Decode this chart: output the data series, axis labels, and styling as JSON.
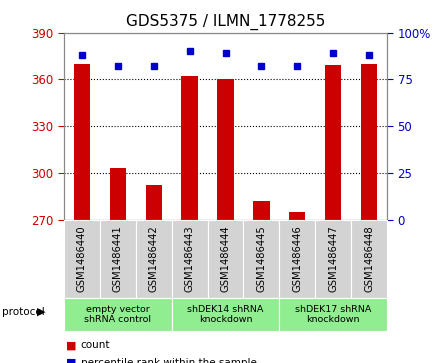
{
  "title": "GDS5375 / ILMN_1778255",
  "samples": [
    "GSM1486440",
    "GSM1486441",
    "GSM1486442",
    "GSM1486443",
    "GSM1486444",
    "GSM1486445",
    "GSM1486446",
    "GSM1486447",
    "GSM1486448"
  ],
  "counts": [
    370,
    303,
    292,
    362,
    360,
    282,
    275,
    369,
    370
  ],
  "percentiles": [
    88,
    82,
    82,
    90,
    89,
    82,
    82,
    89,
    88
  ],
  "ylim_left": [
    270,
    390
  ],
  "yticks_left": [
    270,
    300,
    330,
    360,
    390
  ],
  "ylim_right": [
    0,
    100
  ],
  "yticks_right": [
    0,
    25,
    50,
    75,
    100
  ],
  "yticklabels_right": [
    "0",
    "25",
    "50",
    "75",
    "100%"
  ],
  "bar_color": "#cc0000",
  "dot_color": "#0000cc",
  "bar_width": 0.45,
  "grid_linestyle": "dotted",
  "grid_linewidth": 0.8,
  "group_labels": [
    "empty vector\nshRNA control",
    "shDEK14 shRNA\nknockdown",
    "shDEK17 shRNA\nknockdown"
  ],
  "group_boundaries": [
    0,
    3,
    6,
    9
  ],
  "group_colors": [
    "#90ee90",
    "#90ee90",
    "#90ee90"
  ],
  "tick_color_left": "#cc0000",
  "tick_color_right": "#0000cc",
  "title_fontsize": 11,
  "tick_fontsize": 8.5
}
